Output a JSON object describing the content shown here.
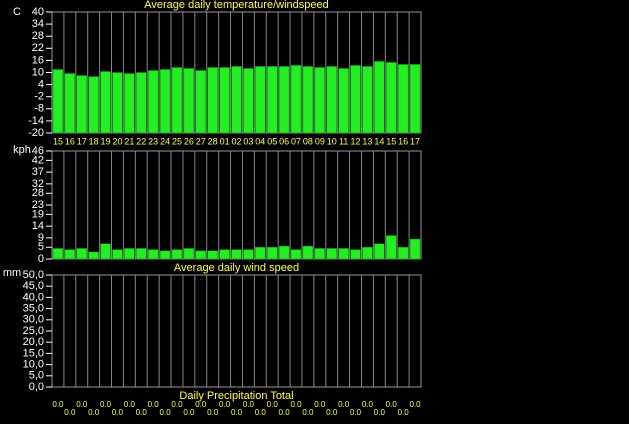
{
  "chart_data": [
    {
      "type": "bar",
      "title": "Average daily temperature/windspeed",
      "y_label": "C",
      "categories": [
        "15",
        "16",
        "17",
        "18",
        "19",
        "20",
        "21",
        "22",
        "23",
        "24",
        "25",
        "26",
        "27",
        "28",
        "01",
        "02",
        "03",
        "04",
        "05",
        "06",
        "07",
        "08",
        "09",
        "10",
        "11",
        "12",
        "13",
        "14",
        "15",
        "16",
        "17"
      ],
      "values": [
        11.5,
        9.5,
        8.5,
        8,
        10.5,
        10,
        9.5,
        10,
        11,
        11.5,
        12.5,
        12,
        11,
        12.5,
        12.5,
        13,
        12,
        13,
        13,
        13,
        13.5,
        13,
        12.5,
        13,
        12,
        13.5,
        13,
        15.5,
        15,
        14,
        14
      ],
      "color": "#22ee22",
      "ylim": [
        -20,
        40
      ],
      "yticks": [
        40,
        34,
        28,
        22,
        16,
        10,
        4,
        -2,
        -8,
        -14,
        -20
      ],
      "grid": true
    },
    {
      "type": "bar",
      "title": "Average daily wind speed",
      "y_label": "kph",
      "values": [
        4.5,
        4,
        4.5,
        3,
        6.5,
        4,
        4.5,
        4.5,
        4,
        3.5,
        4,
        4.5,
        3.5,
        3.5,
        4,
        4,
        4,
        5,
        5,
        5.5,
        4,
        5.5,
        4.5,
        4.5,
        4.5,
        4,
        5,
        6.5,
        10,
        5,
        8.5
      ],
      "color": "#22ee22",
      "ylim": [
        0,
        46
      ],
      "yticks": [
        46,
        42,
        37,
        32,
        28,
        23,
        19,
        14,
        9,
        5,
        0
      ],
      "grid": true
    },
    {
      "type": "bar",
      "title": "Daily Precipitation Total",
      "y_label": "mm",
      "values": [
        0,
        0,
        0,
        0,
        0,
        0,
        0,
        0,
        0,
        0,
        0,
        0,
        0,
        0,
        0,
        0,
        0,
        0,
        0,
        0,
        0,
        0,
        0,
        0,
        0,
        0,
        0,
        0,
        0,
        0,
        0
      ],
      "value_labels": [
        "0.0",
        "0.0",
        "0.0",
        "0.0",
        "0.0",
        "0.0",
        "0.0",
        "0.0",
        "0.0",
        "0.0",
        "0.0",
        "0.0",
        "0.0",
        "0.0",
        "0.0",
        "0.0",
        "0.0",
        "0.0",
        "0.0",
        "0.0",
        "0.0",
        "0.0",
        "0.0",
        "0.0",
        "0.0",
        "0.0",
        "0.0",
        "0.0",
        "0.0",
        "0.0",
        "0.0"
      ],
      "color": "#22ee22",
      "ylim": [
        0,
        50
      ],
      "yticks": [
        {
          "value": 50,
          "label": "50,0"
        },
        {
          "value": 45,
          "label": "45,0"
        },
        {
          "value": 40,
          "label": "40,0"
        },
        {
          "value": 35,
          "label": "35,0"
        },
        {
          "value": 30,
          "label": "30,0"
        },
        {
          "value": 25,
          "label": "25,0"
        },
        {
          "value": 20,
          "label": "20,0"
        },
        {
          "value": 15,
          "label": "15,0"
        },
        {
          "value": 10,
          "label": "10,0"
        },
        {
          "value": 5,
          "label": "5,0"
        },
        {
          "value": 0,
          "label": "0,0"
        }
      ],
      "grid": true
    }
  ]
}
